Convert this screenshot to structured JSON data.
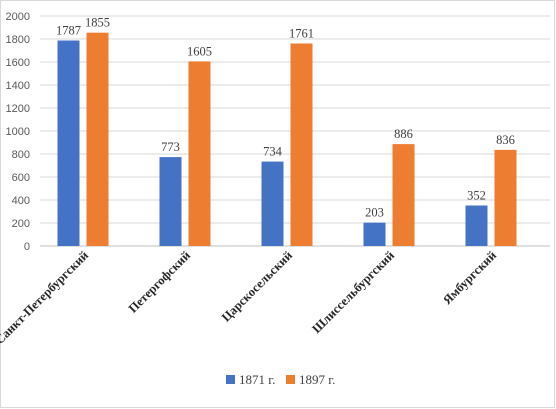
{
  "chart_data": {
    "type": "bar",
    "title": "",
    "xlabel": "",
    "ylabel": "",
    "ylim": [
      0,
      2000
    ],
    "yticks": [
      0,
      200,
      400,
      600,
      800,
      1000,
      1200,
      1400,
      1600,
      1800,
      2000
    ],
    "grid": true,
    "legend_position": "bottom",
    "categories": [
      "Санкт-Петербургский",
      "Петергофский",
      "Царскосельский",
      "Шлиссельбургский",
      "Ямбургский"
    ],
    "series": [
      {
        "name": "1871 г.",
        "color": "#4472c4",
        "values": [
          1787,
          773,
          734,
          203,
          352
        ]
      },
      {
        "name": "1897 г.",
        "color": "#ed7d31",
        "values": [
          1855,
          1605,
          1761,
          886,
          836
        ]
      }
    ]
  }
}
